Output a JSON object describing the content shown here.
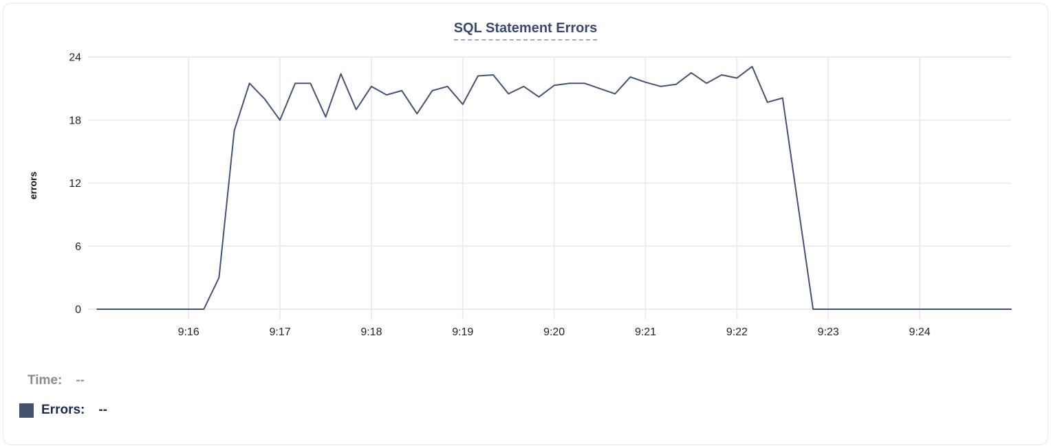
{
  "tooltip": {
    "time_label": "Time:",
    "time_value": "--",
    "errors_label": "Errors:",
    "errors_value": "--"
  },
  "colors": {
    "line": "#44526e",
    "swatch": "#44526e",
    "title": "#3b4a6b",
    "grid": "#ececec",
    "tick_text": "#1f1f1f",
    "time_label_gray": "#8a8a8a",
    "errors_label_navy": "#1d2a4f",
    "title_underline": "#9fabc2"
  },
  "chart_data": {
    "type": "line",
    "title": "SQL Statement Errors",
    "xlabel": "",
    "ylabel": "errors",
    "grid": true,
    "legend_position": "none",
    "ylim": [
      0,
      24
    ],
    "y_ticks": [
      0,
      6,
      12,
      18,
      24
    ],
    "x_tick_labels": [
      "9:16",
      "9:17",
      "9:18",
      "9:19",
      "9:20",
      "9:21",
      "9:22",
      "9:23",
      "9:24"
    ],
    "x_domain": [
      "9:14:54",
      "9:25:00"
    ],
    "series": [
      {
        "name": "Errors",
        "color": "#44526e",
        "start_time": "9:15:00",
        "step_seconds": 10,
        "values": [
          0,
          0,
          0,
          0,
          0,
          0,
          0,
          0,
          3,
          17,
          21.5,
          20,
          18,
          21.5,
          21.5,
          18.3,
          22.4,
          19,
          21.2,
          20.4,
          20.8,
          18.6,
          20.8,
          21.2,
          19.5,
          22.2,
          22.3,
          20.5,
          21.2,
          20.2,
          21.3,
          21.5,
          21.5,
          21,
          20.5,
          22.1,
          21.6,
          21.2,
          21.4,
          22.5,
          21.5,
          22.3,
          22,
          23.1,
          19.7,
          20.1,
          10,
          0,
          0,
          0,
          0,
          0,
          0,
          0,
          0,
          0,
          0,
          0,
          0,
          0,
          0
        ]
      }
    ]
  }
}
